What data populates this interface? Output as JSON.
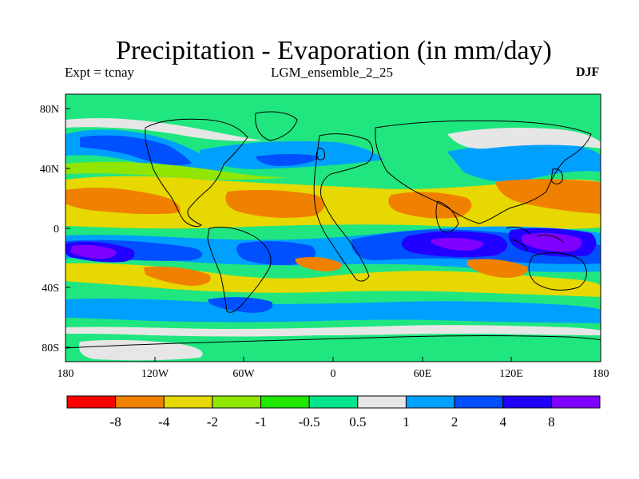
{
  "title": "Precipitation - Evaporation (in mm/day)",
  "left_label": "Expt = tcnay",
  "center_label": "LGM_ensemble_2_25",
  "right_label": "DJF",
  "lat_ticks": [
    "80N",
    "40N",
    "0",
    "40S",
    "80S"
  ],
  "lon_ticks": [
    "180",
    "120W",
    "60W",
    "0",
    "60E",
    "120E",
    "180"
  ],
  "colorbar": {
    "colors": [
      "#ff0000",
      "#f08000",
      "#e6d800",
      "#90e600",
      "#20e600",
      "#00e68c",
      "#e6e6e6",
      "#00a0ff",
      "#0050ff",
      "#2000ff",
      "#8000ff"
    ],
    "labels": [
      "-8",
      "-4",
      "-2",
      "-1",
      "-0.5",
      "0.5",
      "1",
      "2",
      "4",
      "8"
    ]
  },
  "palette": {
    "background_field": "#20e680",
    "coastline": "#000000"
  }
}
